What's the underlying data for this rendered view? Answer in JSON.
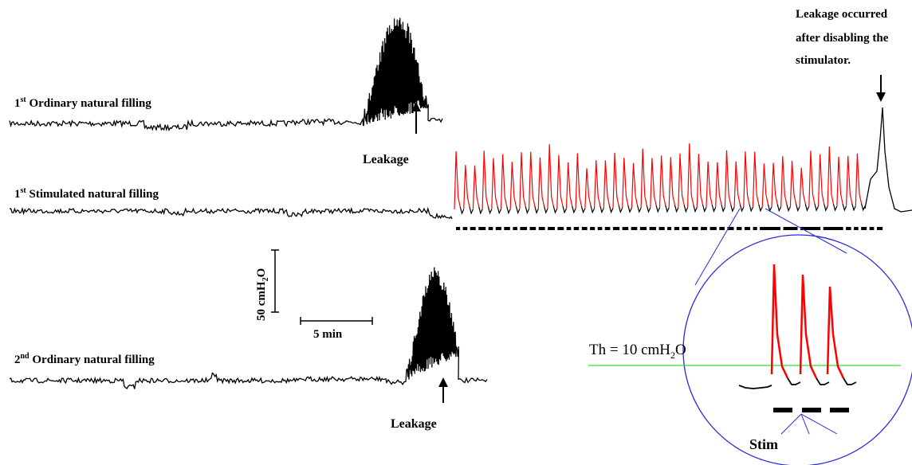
{
  "labels": {
    "trace1": {
      "sup_num": "1",
      "sup": "st",
      "text": " Ordinary natural filling"
    },
    "trace2": {
      "sup_num": "1",
      "sup": "st",
      "text": " Stimulated natural filling"
    },
    "trace3": {
      "sup_num": "2",
      "sup": "nd",
      "text": " Ordinary natural filling"
    },
    "leakage": "Leakage",
    "leakage_after": [
      "Leakage occurred",
      "after disabling the",
      "stimulator."
    ],
    "pressure_scale": "50 cmH",
    "pressure_sub": "2",
    "pressure_tail": "O",
    "time_scale": "5 min",
    "threshold": "Th = 10 cmH",
    "threshold_sub": "2",
    "threshold_tail": "O",
    "stim": "Stim"
  },
  "colors": {
    "trace": "#000000",
    "stimulated": "#ff0000",
    "threshold": "#33dd33",
    "inset_circle": "#2a2adb"
  },
  "chart_data": {
    "type": "line",
    "scale_bars": {
      "pressure_cmH2O": 50,
      "time_min": 5
    },
    "threshold_cmH2O": 10,
    "series": [
      {
        "description_ref": "trace1",
        "leakage_marked": true
      },
      {
        "description_ref": "trace2",
        "stimulated_contractions": 44,
        "leakage_after_stimulator_disabled": true
      },
      {
        "description_ref": "trace3",
        "leakage_marked": true
      }
    ],
    "inset": {
      "stimulated_contractions": 3
    }
  }
}
